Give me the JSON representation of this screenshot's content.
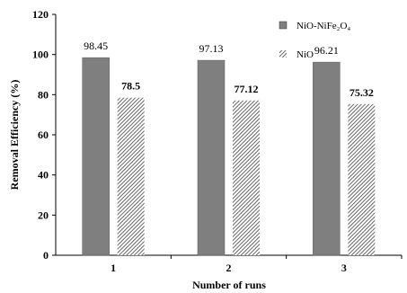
{
  "chart_data": {
    "type": "bar",
    "xlabel": "Number of runs",
    "ylabel": "Removal Efficiency (%)",
    "ylim": [
      0,
      120
    ],
    "yticks": [
      "0",
      "20",
      "40",
      "60",
      "80",
      "100",
      "120"
    ],
    "categories": [
      "1",
      "2",
      "3"
    ],
    "series": [
      {
        "name": "NiO-NiFe₂O₄",
        "values": [
          98.45,
          97.13,
          96.21
        ],
        "labels": [
          "98.45",
          "97.13",
          "96.21"
        ],
        "color": "#7f7f7f",
        "pattern": "solid"
      },
      {
        "name": "NiO",
        "values": [
          78.5,
          77.12,
          75.32
        ],
        "labels": [
          "78.5",
          "77.12",
          "75.32"
        ],
        "color": "#6e6e6e",
        "pattern": "hatched"
      }
    ],
    "legend_position": "top-right",
    "grid": false
  }
}
